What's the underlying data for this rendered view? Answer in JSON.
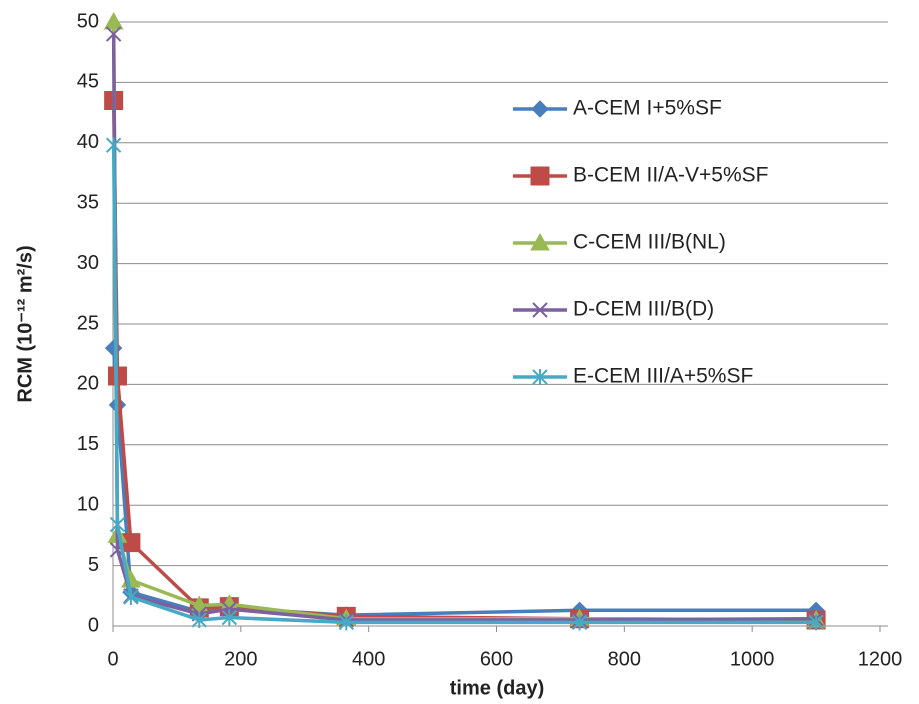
{
  "chart_data": {
    "type": "line",
    "x_label": "time (day)",
    "y_label": "RCM  (10⁻¹² m²/s)",
    "x": [
      1,
      7,
      28,
      135,
      182,
      365,
      730,
      1100
    ],
    "series": [
      {
        "name": "A-CEM I+5%SF",
        "color": "#4a7ebb",
        "marker": "diamond",
        "values": [
          23,
          18.3,
          2.8,
          1.2,
          1.5,
          0.9,
          1.3,
          1.3
        ]
      },
      {
        "name": "B-CEM II/A-V+5%SF",
        "color": "#be4b48",
        "marker": "square",
        "values": [
          43.5,
          20.7,
          6.9,
          1.5,
          1.6,
          0.8,
          0.6,
          0.5
        ]
      },
      {
        "name": "C-CEM III/B(NL)",
        "color": "#98b954",
        "marker": "triangle",
        "values": [
          50,
          7.5,
          3.8,
          1.7,
          1.8,
          0.6,
          0.6,
          0.5
        ]
      },
      {
        "name": "D-CEM III/B(D)",
        "color": "#7d60a0",
        "marker": "x",
        "values": [
          49,
          6.3,
          2.5,
          1.0,
          1.4,
          0.5,
          0.5,
          0.6
        ]
      },
      {
        "name": "E-CEM III/A+5%SF",
        "color": "#46aac5",
        "marker": "asterisk",
        "values": [
          39.8,
          8.4,
          2.4,
          0.5,
          0.7,
          0.3,
          0.3,
          0.3
        ]
      }
    ],
    "xlim": [
      0,
      1200
    ],
    "xticks": [
      0,
      200,
      400,
      600,
      800,
      1000,
      1200
    ],
    "ylim": [
      0,
      50
    ],
    "yticks": [
      0,
      5,
      10,
      15,
      20,
      25,
      30,
      35,
      40,
      45,
      50
    ],
    "grid": true,
    "legend": "right"
  }
}
